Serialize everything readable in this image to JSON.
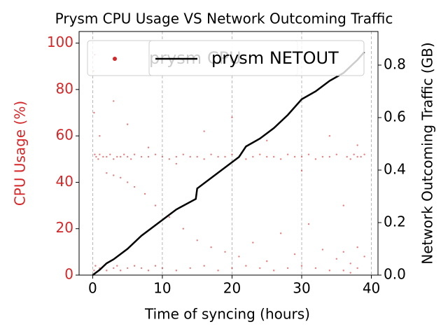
{
  "chart_data": {
    "type": "combo",
    "title": "Prysm CPU Usage VS Network Outcoming Traffic",
    "x_label": "Time of syncing (hours)",
    "y_label": "CPU Usage (%)",
    "y2_label": "Network Outcoming Traffic (GB)",
    "y_color": "#d62728",
    "xlim": [
      -1.95,
      40.95
    ],
    "xticks": [
      0,
      10,
      20,
      30,
      40
    ],
    "ylim": [
      0,
      105
    ],
    "yticks": [
      0,
      20,
      40,
      60,
      80,
      100
    ],
    "y2lim": [
      0,
      0.928
    ],
    "y2ticks": [
      {
        "value": 0,
        "label": "0.0"
      },
      0.2,
      0.4,
      0.6,
      0.8
    ],
    "grid": true,
    "series": [
      {
        "name": "prysm CPU",
        "type": "scatter",
        "color": "#d62728",
        "x": [
          0.1,
          0.2,
          0.3,
          0.5,
          0.8,
          1,
          1.5,
          2,
          2.5,
          3,
          3.5,
          4,
          4.5,
          5,
          5.5,
          6,
          7,
          8,
          9,
          10,
          11,
          12,
          13,
          14,
          15,
          16,
          17,
          18,
          19,
          20,
          21,
          22,
          23,
          24,
          25,
          26,
          27,
          28,
          29,
          30,
          31,
          32,
          33,
          34,
          35,
          36.5,
          37,
          37.5,
          38,
          38.5,
          39,
          0.2,
          0.4,
          1,
          2,
          3,
          3.5,
          4,
          5,
          6,
          7,
          8,
          9,
          10,
          12,
          14,
          16,
          18,
          20,
          22,
          24,
          26,
          28,
          30,
          32,
          34,
          36,
          37,
          38,
          0.3,
          2,
          3,
          4,
          5,
          6,
          7.5,
          9,
          11,
          13,
          15,
          17,
          19,
          21,
          23,
          25,
          27,
          29,
          31,
          33,
          35,
          36,
          37,
          38,
          39,
          1,
          3,
          5,
          8,
          12,
          16,
          20,
          25,
          30,
          34,
          36,
          38
        ],
        "values": [
          88,
          70,
          52,
          51,
          50,
          52,
          51,
          51,
          52,
          50,
          51,
          51,
          52,
          51,
          50,
          52,
          51,
          51,
          52,
          51,
          50,
          51,
          52,
          51,
          51,
          50,
          52,
          51,
          51,
          52,
          51,
          50,
          51,
          52,
          51,
          51,
          50,
          52,
          51,
          51,
          52,
          50,
          51,
          51,
          52,
          51,
          50,
          52,
          51,
          51,
          52,
          2,
          4,
          3,
          2,
          3,
          4,
          2,
          3,
          4,
          3,
          2,
          4,
          3,
          2,
          3,
          4,
          2,
          3,
          4,
          3,
          2,
          3,
          4,
          3,
          2,
          2,
          1,
          3,
          95,
          44,
          43,
          42,
          40,
          38,
          35,
          30,
          25,
          20,
          15,
          12,
          10,
          8,
          14,
          6,
          18,
          9,
          22,
          11,
          7,
          10,
          5,
          12,
          8,
          60,
          75,
          65,
          55,
          48,
          62,
          68,
          58,
          45,
          60,
          30,
          56
        ]
      },
      {
        "name": "prysm NETOUT",
        "type": "line",
        "color": "#000000",
        "axis": "y2",
        "x": [
          0,
          1,
          2,
          3,
          5,
          7,
          9,
          10,
          12,
          14.8,
          15,
          17,
          19,
          20,
          21,
          22,
          24,
          26,
          28,
          30,
          32,
          34,
          36,
          38,
          39
        ],
        "values": [
          0,
          0.02,
          0.045,
          0.06,
          0.1,
          0.15,
          0.19,
          0.21,
          0.25,
          0.29,
          0.33,
          0.37,
          0.41,
          0.43,
          0.45,
          0.49,
          0.52,
          0.56,
          0.61,
          0.67,
          0.7,
          0.74,
          0.77,
          0.82,
          0.85
        ]
      }
    ]
  }
}
